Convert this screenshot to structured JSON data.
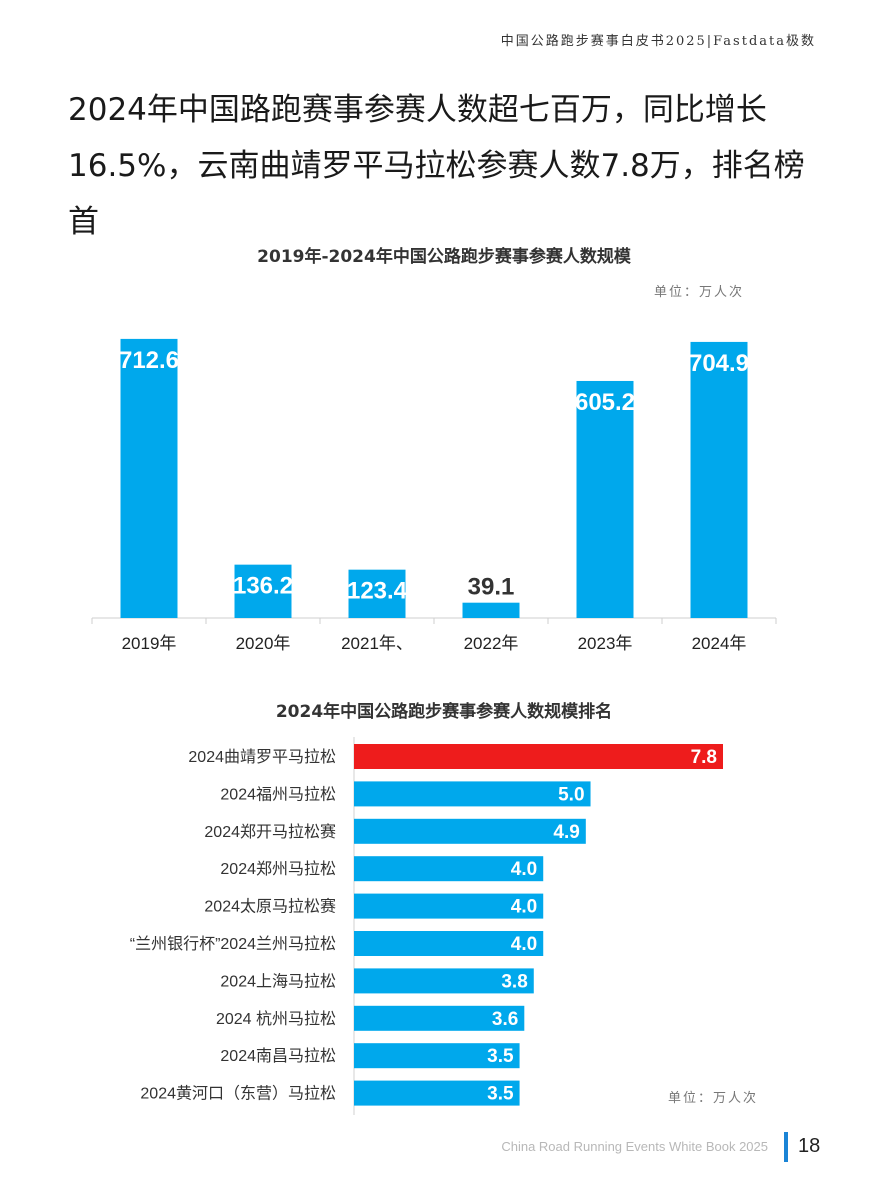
{
  "header": {
    "text": "中国公路跑步赛事白皮书2025|Fastdata极数"
  },
  "headline": "2024年中国路跑赛事参赛人数超七百万，同比增长16.5%，云南曲靖罗平马拉松参赛人数7.8万，排名榜首",
  "chart_data": [
    {
      "type": "bar",
      "title": "2019年-2024年中国公路跑步赛事参赛人数规模",
      "unit": "单位：万人次",
      "categories": [
        "2019年",
        "2020年",
        "2021年、",
        "2022年",
        "2023年",
        "2024年"
      ],
      "values": [
        712.6,
        136.2,
        123.4,
        39.1,
        605.2,
        704.9
      ],
      "value_labels": [
        "712.6",
        "136.2",
        "123.4",
        "39.1",
        "605.2",
        "704.9"
      ],
      "ylim": [
        0,
        720
      ],
      "color": "#00a8ec"
    },
    {
      "type": "bar",
      "orientation": "horizontal",
      "title": "2024年中国公路跑步赛事参赛人数规模排名",
      "unit": "单位：万人次",
      "categories": [
        "2024曲靖罗平马拉松",
        "2024福州马拉松",
        "2024郑开马拉松赛",
        "2024郑州马拉松",
        "2024太原马拉松赛",
        "“兰州银行杯”2024兰州马拉松",
        "2024上海马拉松",
        "2024 杭州马拉松",
        "2024南昌马拉松",
        "2024黄河口（东营）马拉松"
      ],
      "values": [
        7.8,
        5.0,
        4.9,
        4.0,
        4.0,
        4.0,
        3.8,
        3.6,
        3.5,
        3.5
      ],
      "value_labels": [
        "7.8",
        "5.0",
        "4.9",
        "4.0",
        "4.0",
        "4.0",
        "3.8",
        "3.6",
        "3.5",
        "3.5"
      ],
      "highlight_color": "#ee1c1c",
      "color": "#00a8ec"
    }
  ],
  "footer": {
    "text": "China Road Running Events White Book 2025",
    "page": "18"
  }
}
